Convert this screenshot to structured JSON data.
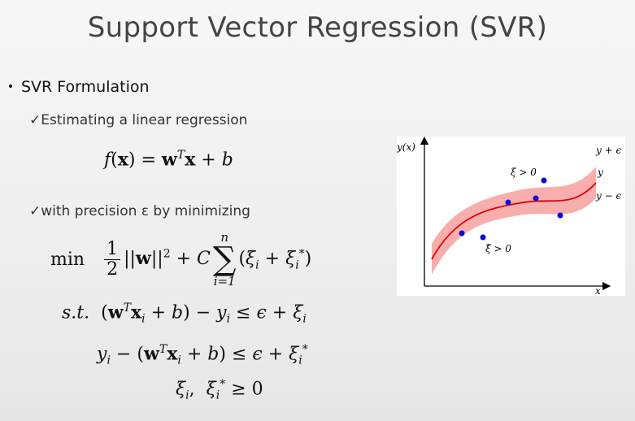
{
  "slide": {
    "title": "Support Vector Regression (SVR)",
    "bullet": "SVR Formulation",
    "check1": "Estimating a linear regression",
    "check2": "with precision ε by minimizing",
    "check_mark": "✓",
    "bullet_mark": "•"
  },
  "equations": {
    "f": "f(x) = wᵀx + b",
    "min_label": "min",
    "min_expr": "½||w||² + C Σᵢ₌₁ⁿ (ξᵢ + ξᵢ*)",
    "st_label": "s.t.",
    "c1": "(wᵀxᵢ + b) − yᵢ ≤ ε + ξᵢ",
    "c2": "yᵢ − (wᵀxᵢ + b) ≤ ε + ξᵢ*",
    "c3": "ξᵢ, ξᵢ* ≥ 0"
  },
  "figure": {
    "y_axis": "y(x)",
    "x_axis": "x",
    "label_upper": "y + ϵ",
    "label_mid": "y",
    "label_lower": "y − ϵ",
    "label_xi": "ξ > 0",
    "label_xi_hat": "ξ̂ > 0",
    "colors": {
      "band": "#f8a0a0",
      "curve": "#e00000",
      "points": "#0000e0"
    }
  }
}
